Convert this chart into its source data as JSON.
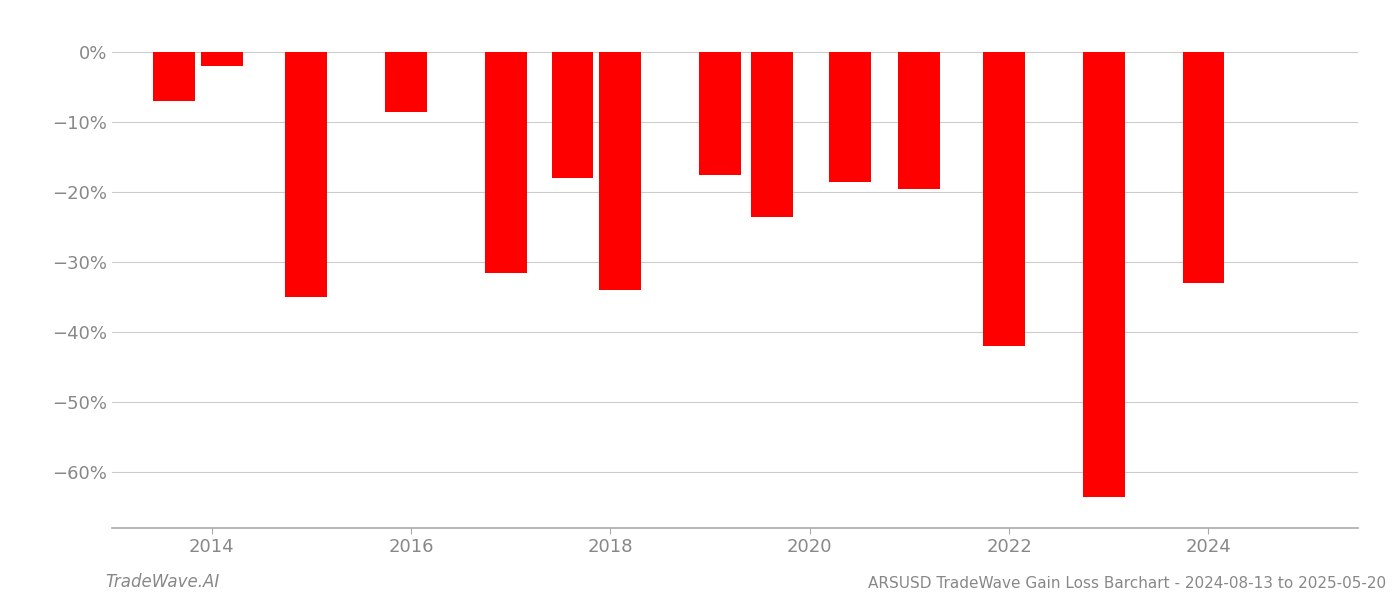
{
  "bars": [
    {
      "year": 2013.62,
      "value": -7.0
    },
    {
      "year": 2014.1,
      "value": -2.0
    },
    {
      "year": 2014.95,
      "value": -35.0
    },
    {
      "year": 2015.95,
      "value": -8.5
    },
    {
      "year": 2016.95,
      "value": -31.5
    },
    {
      "year": 2017.62,
      "value": -18.0
    },
    {
      "year": 2018.1,
      "value": -34.0
    },
    {
      "year": 2019.1,
      "value": -17.5
    },
    {
      "year": 2019.62,
      "value": -23.5
    },
    {
      "year": 2020.4,
      "value": -18.5
    },
    {
      "year": 2021.1,
      "value": -19.5
    },
    {
      "year": 2021.95,
      "value": -42.0
    },
    {
      "year": 2022.95,
      "value": -63.5
    },
    {
      "year": 2023.95,
      "value": -33.0
    }
  ],
  "bar_width": 0.42,
  "bar_color": "#ff0000",
  "xlim": [
    2013.0,
    2025.5
  ],
  "ylim": [
    -68,
    4
  ],
  "yticks": [
    0,
    -10,
    -20,
    -30,
    -40,
    -50,
    -60
  ],
  "ytick_labels": [
    "0%",
    "−10%",
    "−20%",
    "−30%",
    "−40%",
    "−50%",
    "−60%"
  ],
  "xticks": [
    2014,
    2016,
    2018,
    2020,
    2022,
    2024
  ],
  "xtick_labels": [
    "2014",
    "2016",
    "2018",
    "2020",
    "2022",
    "2024"
  ],
  "grid_color": "#cccccc",
  "spine_color": "#aaaaaa",
  "tick_color": "#888888",
  "watermark": "TradeWave.AI",
  "footer": "ARSUSD TradeWave Gain Loss Barchart - 2024-08-13 to 2025-05-20",
  "background_color": "#ffffff",
  "font_color": "#888888"
}
